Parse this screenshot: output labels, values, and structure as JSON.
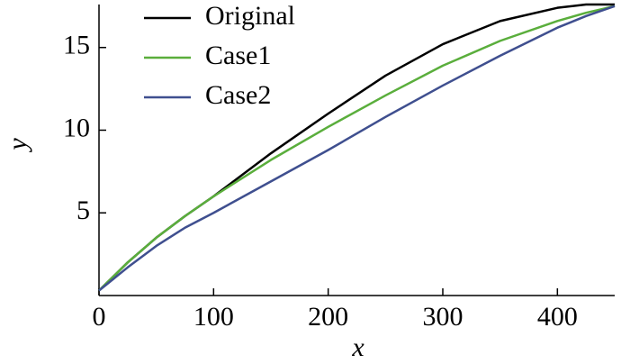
{
  "chart_data": {
    "type": "line",
    "x": [
      0,
      25,
      50,
      75,
      100,
      150,
      200,
      250,
      300,
      350,
      400,
      425,
      450
    ],
    "series": [
      {
        "name": "Original",
        "color": "#000000",
        "values": [
          0.3,
          2.0,
          3.5,
          4.8,
          6.0,
          8.6,
          11.0,
          13.3,
          15.2,
          16.6,
          17.4,
          17.6,
          17.6
        ]
      },
      {
        "name": "Case1",
        "color": "#5aae3c",
        "values": [
          0.3,
          2.0,
          3.5,
          4.8,
          6.0,
          8.2,
          10.2,
          12.1,
          13.9,
          15.4,
          16.6,
          17.1,
          17.5
        ]
      },
      {
        "name": "Case2",
        "color": "#3f4f8f",
        "values": [
          0.3,
          1.7,
          3.0,
          4.1,
          5.0,
          6.9,
          8.8,
          10.8,
          12.7,
          14.5,
          16.2,
          16.9,
          17.5
        ]
      }
    ],
    "x_label": "x",
    "y_label": "y",
    "xlim": [
      0,
      450
    ],
    "ylim": [
      0,
      17.6
    ],
    "xticks": [
      0,
      100,
      200,
      300,
      400
    ],
    "yticks": [
      5,
      10,
      15
    ],
    "legend": "upper left"
  }
}
